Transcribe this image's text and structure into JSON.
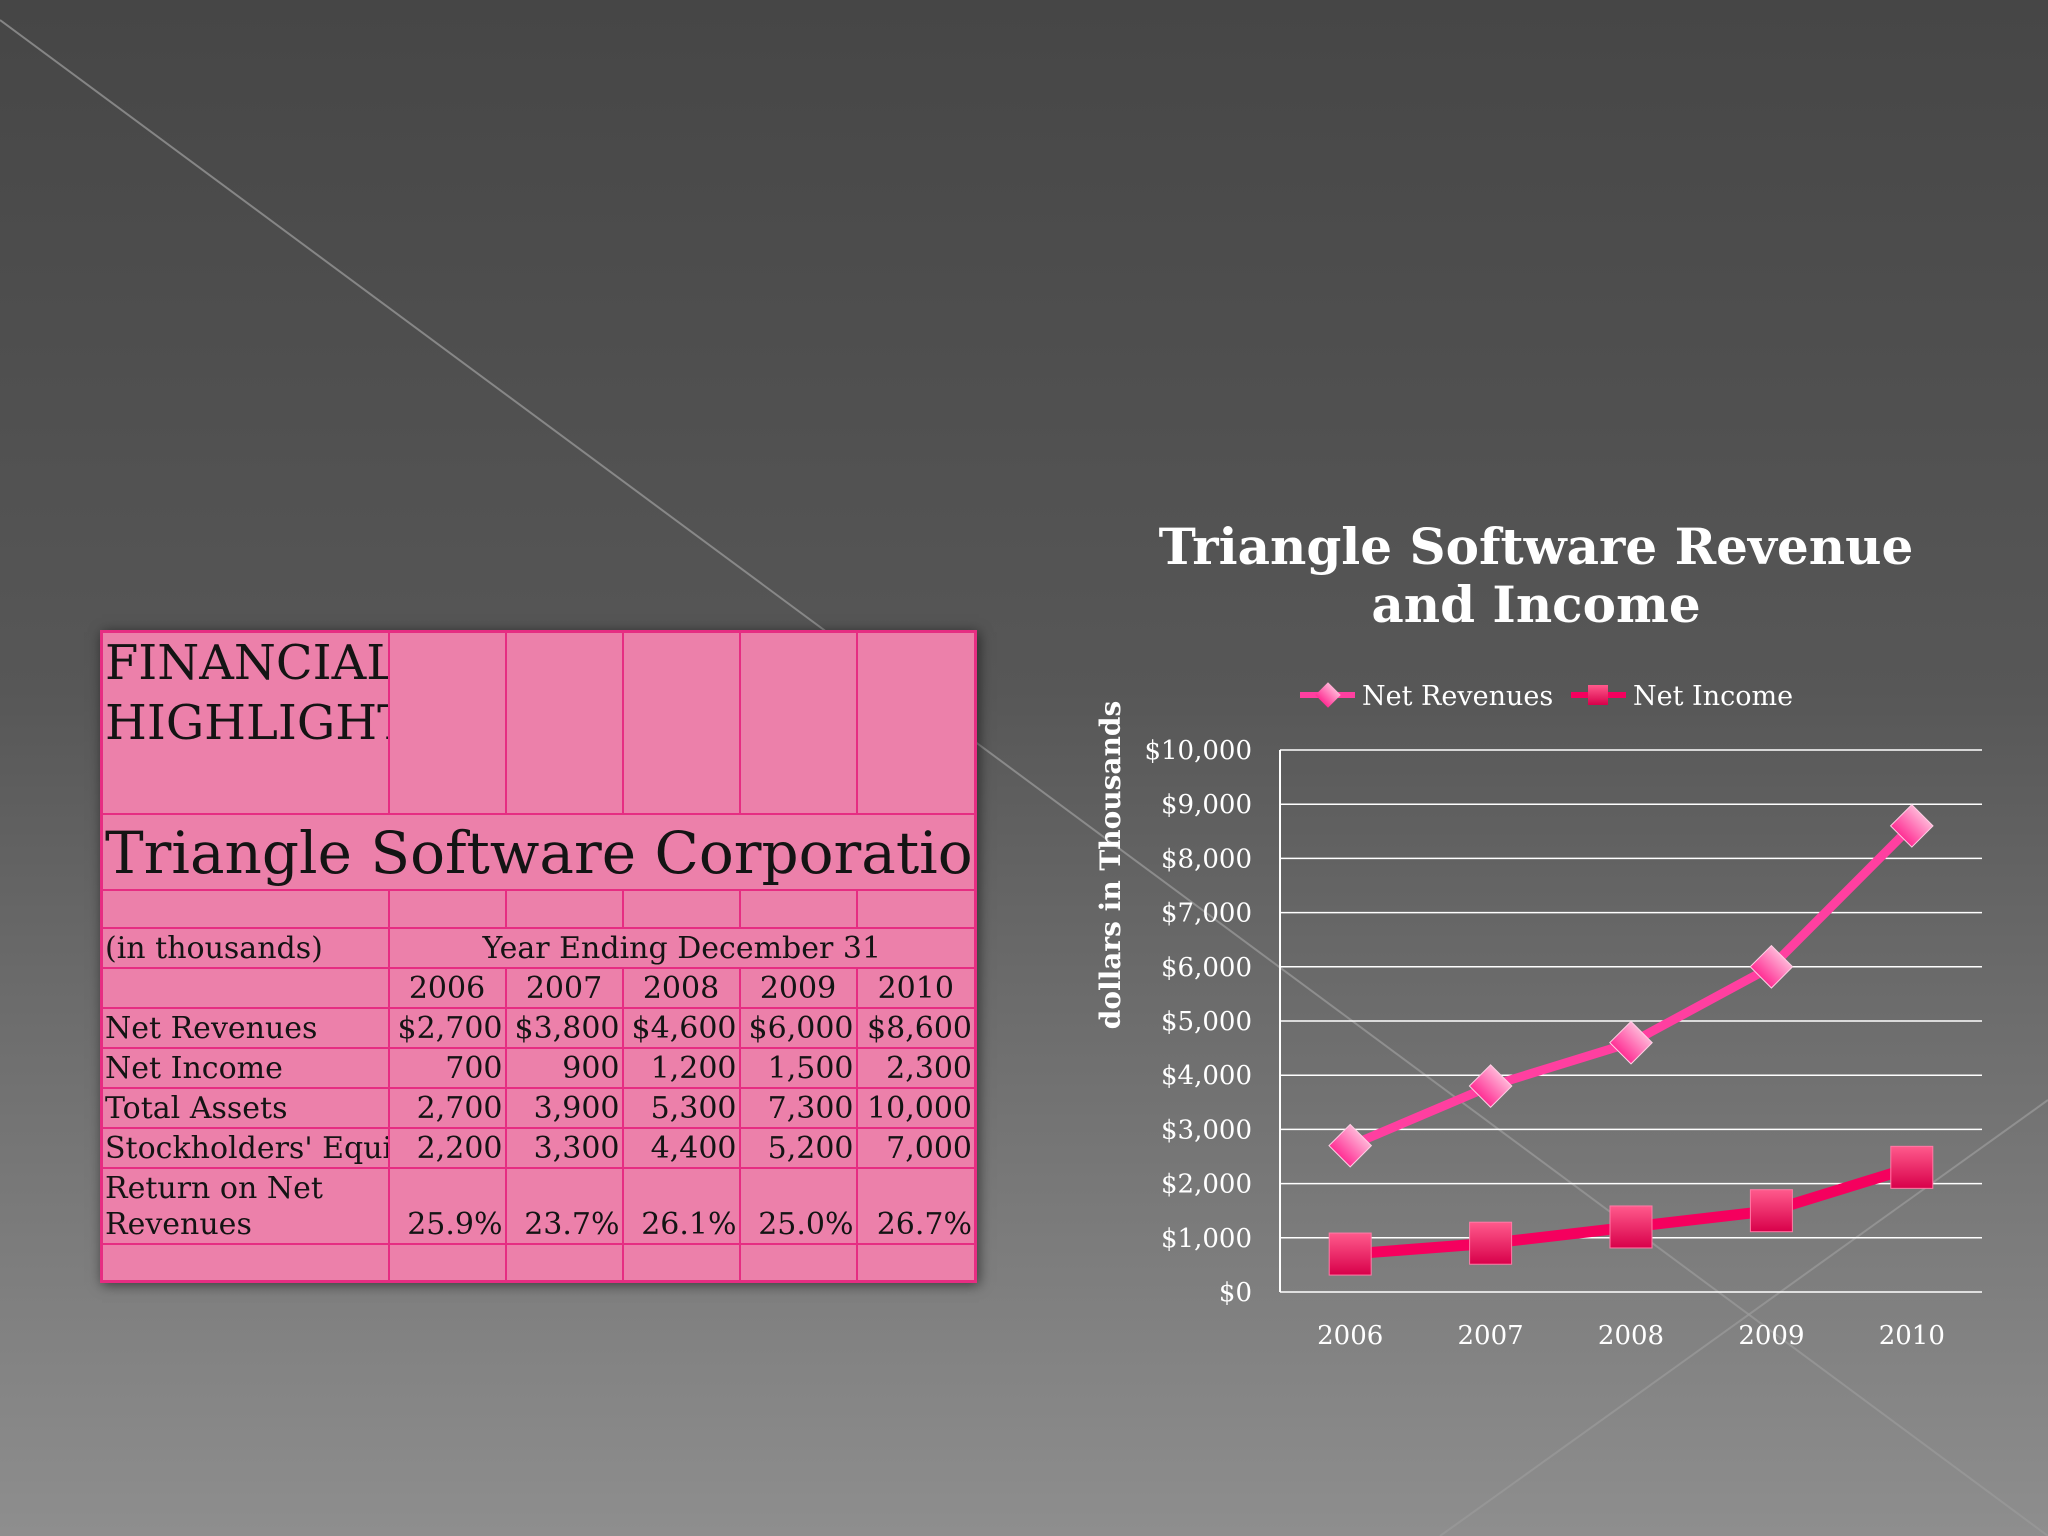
{
  "table": {
    "heading": "FINANCIAL HIGHLIGHTS",
    "company": "Triangle Software Corporation",
    "units_label": "(in thousands)",
    "period_label": "Year Ending December 31",
    "years": [
      "2006",
      "2007",
      "2008",
      "2009",
      "2010"
    ],
    "rows": [
      {
        "label": "Net Revenues",
        "values": [
          "$2,700",
          "$3,800",
          "$4,600",
          "$6,000",
          "$8,600"
        ]
      },
      {
        "label": "Net Income",
        "values": [
          "700",
          "900",
          "1,200",
          "1,500",
          "2,300"
        ]
      },
      {
        "label": "Total Assets",
        "values": [
          "2,700",
          "3,900",
          "5,300",
          "7,300",
          "10,000"
        ]
      },
      {
        "label": "Stockholders' Equity",
        "values": [
          "2,200",
          "3,300",
          "4,400",
          "5,200",
          "7,000"
        ]
      },
      {
        "label": "Return on Net Revenues",
        "values": [
          "25.9%",
          "23.7%",
          "26.1%",
          "25.0%",
          "26.7%"
        ]
      }
    ]
  },
  "chart_data": {
    "type": "line",
    "title_lines": [
      "Triangle Software Revenue",
      "and Income"
    ],
    "xlabel": "",
    "ylabel": "dollars in Thousands",
    "categories": [
      "2006",
      "2007",
      "2008",
      "2009",
      "2010"
    ],
    "ylim": [
      0,
      10000
    ],
    "yticks": [
      0,
      1000,
      2000,
      3000,
      4000,
      5000,
      6000,
      7000,
      8000,
      9000,
      10000
    ],
    "ytick_labels": [
      "$0",
      "$1,000",
      "$2,000",
      "$3,000",
      "$4,000",
      "$5,000",
      "$6,000",
      "$7,000",
      "$8,000",
      "$9,000",
      "$10,000"
    ],
    "grid": true,
    "legend_position": "top",
    "series": [
      {
        "name": "Net Revenues",
        "values": [
          2700,
          3800,
          4600,
          6000,
          8600
        ],
        "color": "#ff3fa0",
        "marker": "diamond"
      },
      {
        "name": "Net Income",
        "values": [
          700,
          900,
          1200,
          1500,
          2300
        ],
        "color": "#f5005e",
        "marker": "square"
      }
    ]
  }
}
